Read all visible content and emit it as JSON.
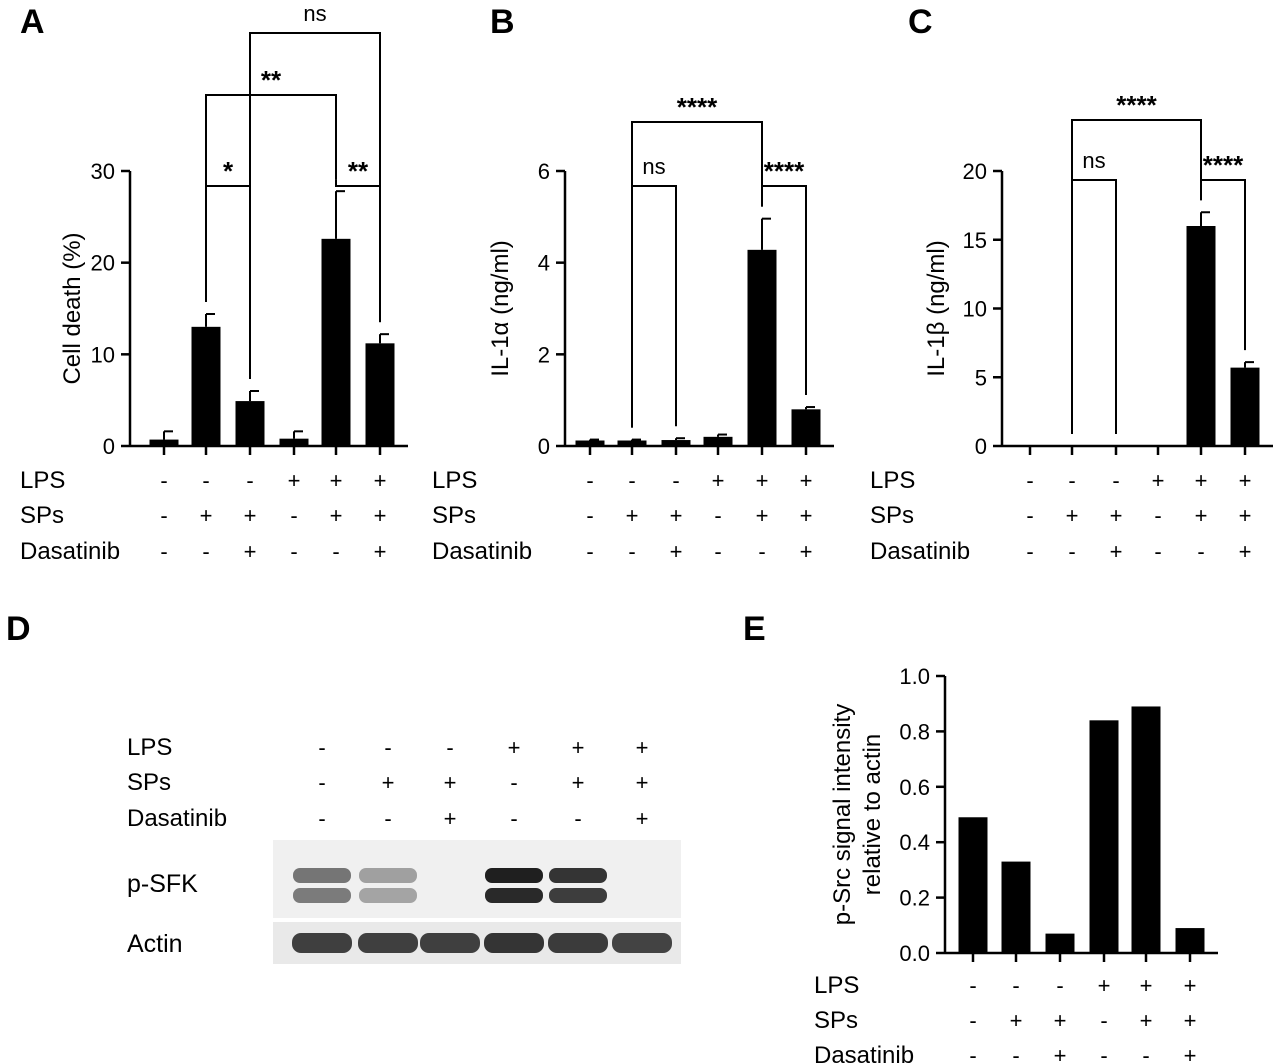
{
  "conditions": {
    "row_labels": [
      "LPS",
      "SPs",
      "Dasatinib"
    ],
    "signs": [
      [
        "-",
        "-",
        "-",
        "+",
        "+",
        "+"
      ],
      [
        "-",
        "+",
        "+",
        "-",
        "+",
        "+"
      ],
      [
        "-",
        "-",
        "+",
        "-",
        "-",
        "+"
      ]
    ]
  },
  "chart_data": [
    {
      "panel": "A",
      "type": "bar",
      "title": "",
      "ylabel": "Cell death (%)",
      "xlabel": "",
      "ylim": [
        0,
        30
      ],
      "yticks": [
        0,
        10,
        20,
        30
      ],
      "values": [
        0.7,
        13.0,
        4.9,
        0.8,
        22.6,
        11.2
      ],
      "errors": [
        0.9,
        1.4,
        1.1,
        0.8,
        5.2,
        1.0
      ],
      "comparisons": [
        {
          "groups": [
            1,
            2
          ],
          "label": "*"
        },
        {
          "groups": [
            4,
            5
          ],
          "label": "**"
        },
        {
          "groups": [
            1,
            4
          ],
          "label": "**"
        },
        {
          "groups": [
            2,
            5
          ],
          "label": "ns"
        }
      ]
    },
    {
      "panel": "B",
      "type": "bar",
      "title": "",
      "ylabel": "IL-1α (ng/ml)",
      "xlabel": "",
      "ylim": [
        0,
        6
      ],
      "yticks": [
        0,
        2,
        4,
        6
      ],
      "values": [
        0.12,
        0.12,
        0.13,
        0.2,
        4.28,
        0.8
      ],
      "errors": [
        0.02,
        0.02,
        0.04,
        0.05,
        0.68,
        0.05
      ],
      "comparisons": [
        {
          "groups": [
            1,
            2
          ],
          "label": "ns"
        },
        {
          "groups": [
            4,
            5
          ],
          "label": "****"
        },
        {
          "groups": [
            1,
            4
          ],
          "label": "****"
        }
      ]
    },
    {
      "panel": "C",
      "type": "bar",
      "title": "",
      "ylabel": "IL-1β (ng/ml)",
      "xlabel": "",
      "ylim": [
        0,
        20
      ],
      "yticks": [
        0,
        5,
        10,
        15,
        20
      ],
      "values": [
        0,
        0,
        0,
        0,
        16.0,
        5.7
      ],
      "errors": [
        0,
        0,
        0,
        0,
        1.0,
        0.4
      ],
      "comparisons": [
        {
          "groups": [
            1,
            2
          ],
          "label": "ns"
        },
        {
          "groups": [
            4,
            5
          ],
          "label": "****"
        },
        {
          "groups": [
            1,
            4
          ],
          "label": "****"
        }
      ]
    },
    {
      "panel": "E",
      "type": "bar",
      "title": "",
      "ylabel_lines": [
        "p-Src signal intensity",
        "relative to actin"
      ],
      "xlabel": "",
      "ylim": [
        0,
        1.0
      ],
      "yticks": [
        "0.0",
        "0.2",
        "0.4",
        "0.6",
        "0.8",
        "1.0"
      ],
      "values": [
        0.49,
        0.33,
        0.07,
        0.84,
        0.89,
        0.09
      ],
      "errors": [],
      "comparisons": []
    }
  ],
  "blot": {
    "panel": "D",
    "rows": [
      "p-SFK",
      "Actin"
    ],
    "psfk_intensity": [
      0.55,
      0.35,
      0.0,
      0.95,
      0.85,
      0.0
    ],
    "actin_intensity": [
      0.8,
      0.8,
      0.8,
      0.85,
      0.82,
      0.78
    ]
  }
}
